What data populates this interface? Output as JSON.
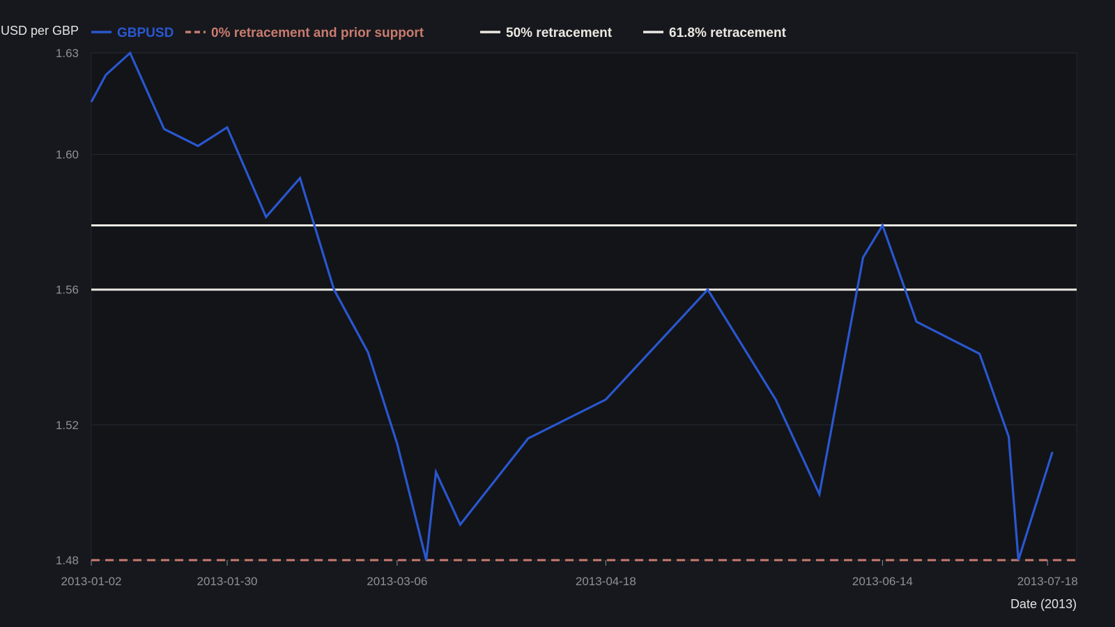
{
  "chart_data": {
    "type": "line",
    "title": "",
    "ylabel": "USD per GBP",
    "xlabel": "Date (2013)",
    "ylim": [
      1.48,
      1.63
    ],
    "xlim": [
      "2013-01-02",
      "2013-07-24"
    ],
    "yticks": [
      1.48,
      1.52,
      1.56,
      1.6,
      1.63
    ],
    "ytick_labels": [
      "1.48",
      "1.52",
      "1.56",
      "1.60",
      "1.63"
    ],
    "xticks": [
      "2013-01-02",
      "2013-01-30",
      "2013-03-06",
      "2013-04-18",
      "2013-06-14",
      "2013-07-18"
    ],
    "xtick_labels": [
      "2013-01-02",
      "2013-01-30",
      "2013-03-06",
      "2013-04-18",
      "2013-06-14",
      "2013-07-18"
    ],
    "grid": true,
    "legend_position": "top-left",
    "series": [
      {
        "name": "GBPUSD",
        "color": "#2a57d0",
        "style": "solid",
        "points": [
          {
            "x": "2013-01-02",
            "y": 1.6155
          },
          {
            "x": "2013-01-05",
            "y": 1.6235
          },
          {
            "x": "2013-01-10",
            "y": 1.63
          },
          {
            "x": "2013-01-17",
            "y": 1.6075
          },
          {
            "x": "2013-01-24",
            "y": 1.6025
          },
          {
            "x": "2013-01-30",
            "y": 1.608
          },
          {
            "x": "2013-02-07",
            "y": 1.5815
          },
          {
            "x": "2013-02-14",
            "y": 1.593
          },
          {
            "x": "2013-02-21",
            "y": 1.56
          },
          {
            "x": "2013-02-28",
            "y": 1.5415
          },
          {
            "x": "2013-03-06",
            "y": 1.5145
          },
          {
            "x": "2013-03-12",
            "y": 1.48
          },
          {
            "x": "2013-03-14",
            "y": 1.506
          },
          {
            "x": "2013-03-19",
            "y": 1.4905
          },
          {
            "x": "2013-04-02",
            "y": 1.516
          },
          {
            "x": "2013-04-18",
            "y": 1.5275
          },
          {
            "x": "2013-05-09",
            "y": 1.56
          },
          {
            "x": "2013-05-23",
            "y": 1.5275
          },
          {
            "x": "2013-06-01",
            "y": 1.4995
          },
          {
            "x": "2013-06-10",
            "y": 1.5695
          },
          {
            "x": "2013-06-14",
            "y": 1.579
          },
          {
            "x": "2013-06-21",
            "y": 1.5505
          },
          {
            "x": "2013-07-04",
            "y": 1.541
          },
          {
            "x": "2013-07-10",
            "y": 1.5165
          },
          {
            "x": "2013-07-12",
            "y": 1.48
          },
          {
            "x": "2013-07-19",
            "y": 1.512
          }
        ]
      },
      {
        "name": "0% retracement and prior support",
        "color": "#c97b6e",
        "style": "dashed",
        "y": 1.48
      },
      {
        "name": "50% retracement",
        "color": "#ece8e2",
        "style": "solid",
        "y": 1.56
      },
      {
        "name": "61.8% retracement",
        "color": "#ece8e2",
        "style": "solid",
        "y": 1.579
      }
    ]
  },
  "colors": {
    "background": "#16181d",
    "plot_background": "#121418",
    "grid": "#262a31",
    "axis_text": "#8e9196",
    "label_text": "#e4e4e4"
  }
}
